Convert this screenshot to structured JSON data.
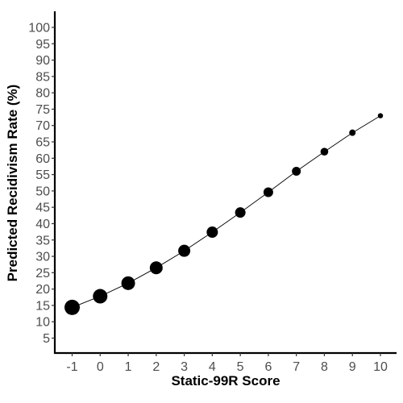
{
  "chart_data": {
    "type": "scatter",
    "title": "",
    "xlabel": "Static-99R Score",
    "ylabel": "Predicted Recidivism Rate (%)",
    "xlim": [
      -1,
      10
    ],
    "ylim": [
      5,
      100
    ],
    "x_ticks": [
      -1,
      0,
      1,
      2,
      3,
      4,
      5,
      6,
      7,
      8,
      9,
      10
    ],
    "y_ticks": [
      5,
      10,
      15,
      20,
      25,
      30,
      35,
      40,
      45,
      50,
      55,
      60,
      65,
      70,
      75,
      80,
      85,
      90,
      95,
      100
    ],
    "grid": false,
    "legend": "none",
    "connected_line": true,
    "marker_size_decreases_with_x": true,
    "series": [
      {
        "x": [
          -1,
          0,
          1,
          2,
          3,
          4,
          5,
          6,
          7,
          8,
          9,
          10
        ],
        "y": [
          14.4,
          17.8,
          21.8,
          26.5,
          31.7,
          37.4,
          43.4,
          49.6,
          56.0,
          62.0,
          67.8,
          73.0
        ],
        "marker_size": [
          9.5,
          9,
          8.5,
          8,
          7.5,
          7,
          6.5,
          6,
          5.5,
          4.8,
          4,
          3.2
        ],
        "color": "#000000"
      }
    ]
  }
}
